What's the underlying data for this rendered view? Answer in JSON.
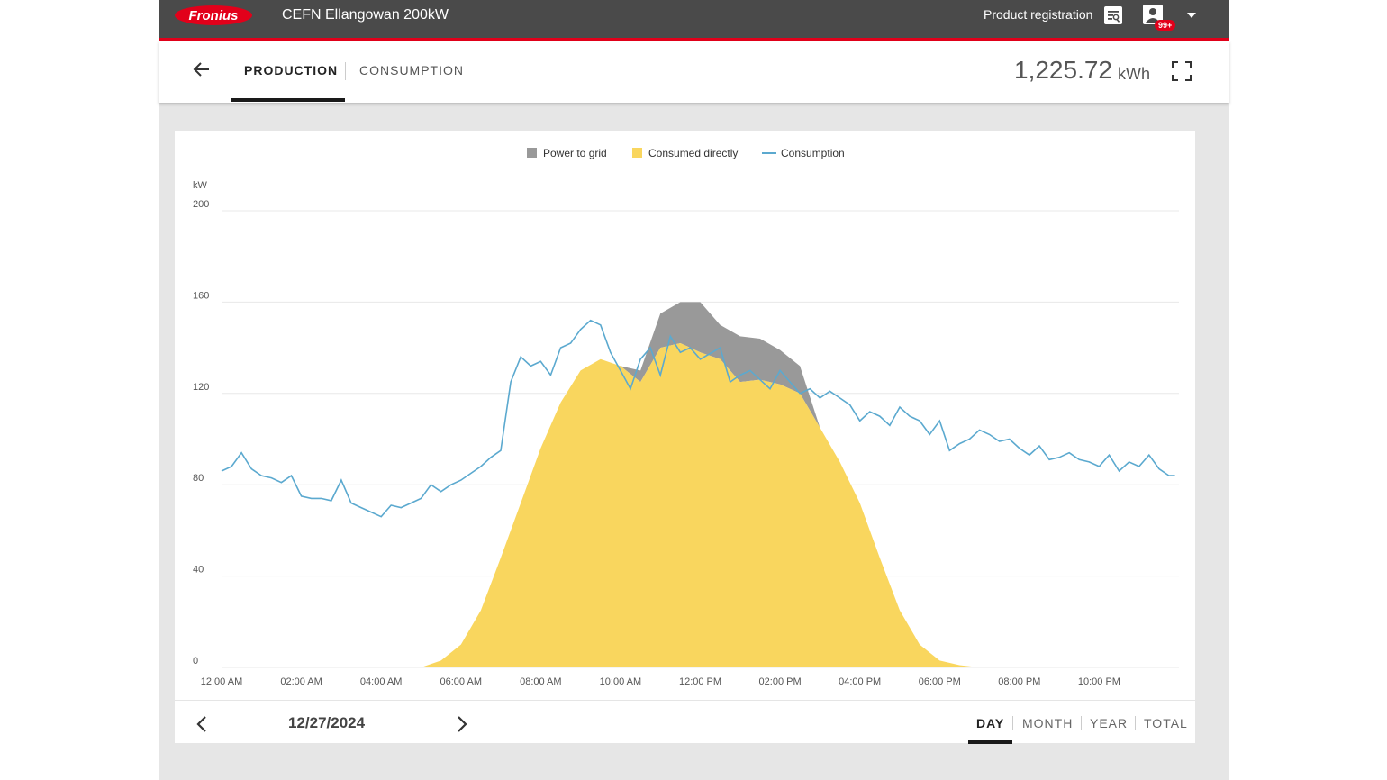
{
  "header": {
    "brand": "Fronius",
    "plant_name": "CEFN Ellangowan 200kW",
    "product_registration": "Product registration",
    "notification_badge": "99+",
    "brand_color": "#e2001a"
  },
  "tabs": [
    {
      "label": "PRODUCTION",
      "active": true
    },
    {
      "label": "CONSUMPTION",
      "active": false
    }
  ],
  "summary": {
    "value": "1,225.72",
    "unit": "kWh"
  },
  "footer": {
    "date": "12/27/2024",
    "periods": [
      {
        "label": "DAY",
        "active": true
      },
      {
        "label": "MONTH",
        "active": false
      },
      {
        "label": "YEAR",
        "active": false
      },
      {
        "label": "TOTAL",
        "active": false
      }
    ]
  },
  "icons": {
    "back": "arrow-left-icon",
    "fullscreen": "fullscreen-icon",
    "prev": "chevron-left-icon",
    "next": "chevron-right-icon",
    "registration": "registration-icon",
    "user": "user-icon",
    "caret": "caret-down-icon"
  },
  "chart_data": {
    "type": "area",
    "ylabel": "kW",
    "ylim": [
      0,
      200
    ],
    "yticks": [
      0,
      40,
      80,
      120,
      160,
      200
    ],
    "xlim": [
      0,
      24
    ],
    "xticks": [
      "12:00 AM",
      "02:00 AM",
      "04:00 AM",
      "06:00 AM",
      "08:00 AM",
      "10:00 AM",
      "12:00 PM",
      "02:00 PM",
      "04:00 PM",
      "06:00 PM",
      "08:00 PM",
      "10:00 PM"
    ],
    "legend_position": "top-center",
    "grid": true,
    "series": [
      {
        "name": "Power to grid",
        "kind": "area",
        "color": "#999999",
        "points": [
          [
            10.0,
            0
          ],
          [
            10.5,
            5
          ],
          [
            11.0,
            15
          ],
          [
            11.5,
            18
          ],
          [
            12.0,
            22
          ],
          [
            12.5,
            15
          ],
          [
            13.0,
            20
          ],
          [
            13.5,
            18
          ],
          [
            14.0,
            15
          ],
          [
            14.5,
            12
          ],
          [
            15.0,
            0
          ]
        ]
      },
      {
        "name": "Consumed directly",
        "kind": "area",
        "color": "#f9d65e",
        "points": [
          [
            0,
            0
          ],
          [
            5.0,
            0
          ],
          [
            5.5,
            3
          ],
          [
            6.0,
            10
          ],
          [
            6.5,
            25
          ],
          [
            7.0,
            48
          ],
          [
            7.5,
            72
          ],
          [
            8.0,
            96
          ],
          [
            8.5,
            116
          ],
          [
            9.0,
            130
          ],
          [
            9.5,
            135
          ],
          [
            10.0,
            132
          ],
          [
            10.5,
            125
          ],
          [
            11.0,
            140
          ],
          [
            11.5,
            142
          ],
          [
            12.0,
            138
          ],
          [
            12.5,
            135
          ],
          [
            13.0,
            125
          ],
          [
            13.5,
            126
          ],
          [
            14.0,
            124
          ],
          [
            14.5,
            120
          ],
          [
            15.0,
            105
          ],
          [
            15.5,
            90
          ],
          [
            16.0,
            72
          ],
          [
            16.5,
            48
          ],
          [
            17.0,
            25
          ],
          [
            17.5,
            10
          ],
          [
            18.0,
            3
          ],
          [
            18.5,
            1
          ],
          [
            19.0,
            0
          ],
          [
            24,
            0
          ]
        ]
      },
      {
        "name": "Consumption",
        "kind": "line",
        "color": "#5ba9cf",
        "points": [
          [
            0,
            86
          ],
          [
            0.25,
            88
          ],
          [
            0.5,
            94
          ],
          [
            0.75,
            87
          ],
          [
            1.0,
            84
          ],
          [
            1.25,
            83
          ],
          [
            1.5,
            81
          ],
          [
            1.75,
            84
          ],
          [
            2.0,
            75
          ],
          [
            2.25,
            74
          ],
          [
            2.5,
            74
          ],
          [
            2.75,
            73
          ],
          [
            3.0,
            82
          ],
          [
            3.25,
            72
          ],
          [
            3.5,
            70
          ],
          [
            3.75,
            68
          ],
          [
            4.0,
            66
          ],
          [
            4.25,
            71
          ],
          [
            4.5,
            70
          ],
          [
            4.75,
            72
          ],
          [
            5.0,
            74
          ],
          [
            5.25,
            80
          ],
          [
            5.5,
            77
          ],
          [
            5.75,
            80
          ],
          [
            6.0,
            82
          ],
          [
            6.25,
            85
          ],
          [
            6.5,
            88
          ],
          [
            6.75,
            92
          ],
          [
            7.0,
            95
          ],
          [
            7.25,
            125
          ],
          [
            7.5,
            136
          ],
          [
            7.75,
            132
          ],
          [
            8.0,
            134
          ],
          [
            8.25,
            128
          ],
          [
            8.5,
            140
          ],
          [
            8.75,
            142
          ],
          [
            9.0,
            148
          ],
          [
            9.25,
            152
          ],
          [
            9.5,
            150
          ],
          [
            9.75,
            138
          ],
          [
            10.0,
            130
          ],
          [
            10.25,
            122
          ],
          [
            10.5,
            135
          ],
          [
            10.75,
            140
          ],
          [
            11.0,
            128
          ],
          [
            11.25,
            145
          ],
          [
            11.5,
            138
          ],
          [
            11.75,
            140
          ],
          [
            12.0,
            135
          ],
          [
            12.5,
            140
          ],
          [
            12.75,
            125
          ],
          [
            13.0,
            128
          ],
          [
            13.25,
            130
          ],
          [
            13.5,
            126
          ],
          [
            13.75,
            122
          ],
          [
            14.0,
            130
          ],
          [
            14.25,
            125
          ],
          [
            14.5,
            120
          ],
          [
            14.75,
            122
          ],
          [
            15.0,
            118
          ],
          [
            15.25,
            121
          ],
          [
            15.5,
            118
          ],
          [
            15.75,
            115
          ],
          [
            16.0,
            108
          ],
          [
            16.25,
            112
          ],
          [
            16.5,
            110
          ],
          [
            16.75,
            106
          ],
          [
            17.0,
            114
          ],
          [
            17.25,
            110
          ],
          [
            17.5,
            108
          ],
          [
            17.75,
            102
          ],
          [
            18.0,
            108
          ],
          [
            18.25,
            95
          ],
          [
            18.5,
            98
          ],
          [
            18.75,
            100
          ],
          [
            19.0,
            104
          ],
          [
            19.25,
            102
          ],
          [
            19.5,
            99
          ],
          [
            19.75,
            100
          ],
          [
            20.0,
            96
          ],
          [
            20.25,
            93
          ],
          [
            20.5,
            97
          ],
          [
            20.75,
            91
          ],
          [
            21.0,
            92
          ],
          [
            21.25,
            94
          ],
          [
            21.5,
            91
          ],
          [
            21.75,
            90
          ],
          [
            22.0,
            88
          ],
          [
            22.25,
            93
          ],
          [
            22.5,
            86
          ],
          [
            22.75,
            90
          ],
          [
            23.0,
            88
          ],
          [
            23.25,
            93
          ],
          [
            23.5,
            87
          ],
          [
            23.75,
            84
          ],
          [
            23.9,
            84
          ]
        ]
      }
    ]
  }
}
